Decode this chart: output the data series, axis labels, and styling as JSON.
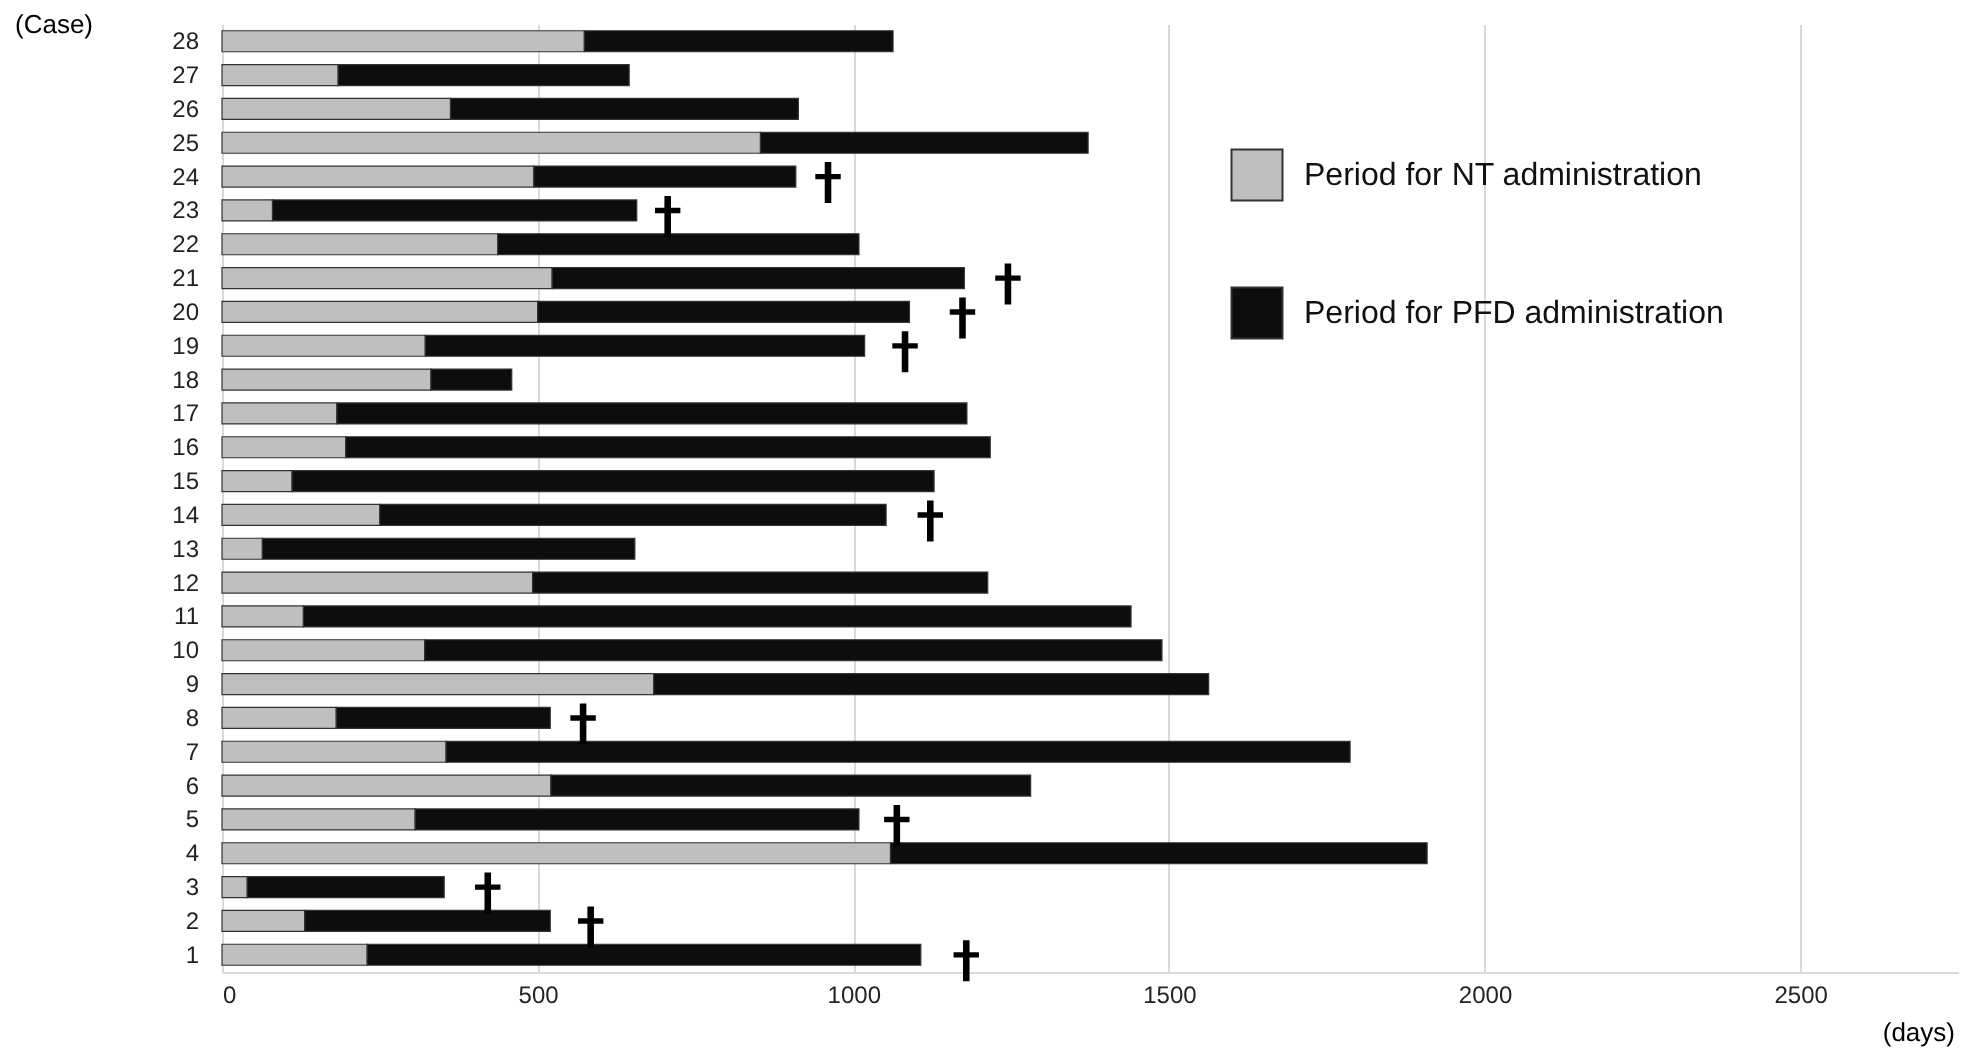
{
  "chart_data": {
    "type": "bar",
    "orientation": "horizontal",
    "stacked": true,
    "xlabel": "(days)",
    "ylabel": "(Case)",
    "categories": [
      "28",
      "27",
      "26",
      "25",
      "24",
      "23",
      "22",
      "21",
      "20",
      "19",
      "18",
      "17",
      "16",
      "15",
      "14",
      "13",
      "12",
      "11",
      "10",
      "9",
      "8",
      "7",
      "6",
      "5",
      "4",
      "3",
      "2",
      "1"
    ],
    "series": [
      {
        "name": "Period for NT administration",
        "color": "#bfbfbf",
        "values": [
          574,
          184,
          362,
          853,
          494,
          80,
          437,
          523,
          500,
          322,
          331,
          182,
          196,
          111,
          250,
          64,
          492,
          129,
          321,
          684,
          181,
          355,
          521,
          306,
          1059,
          40,
          131,
          230
        ]
      },
      {
        "name": "Period for PFD administration",
        "color": "#0d0d0d",
        "values": [
          489,
          461,
          551,
          519,
          415,
          577,
          572,
          653,
          589,
          696,
          128,
          998,
          1021,
          1017,
          802,
          590,
          721,
          1311,
          1168,
          879,
          339,
          1432,
          760,
          703,
          850,
          312,
          389,
          877
        ]
      },
      {
        "type": "scatter",
        "marker": "cross",
        "color": "#000000",
        "values": [
          null,
          null,
          null,
          null,
          960,
          706,
          null,
          1245,
          1173,
          1082,
          null,
          null,
          null,
          null,
          1122,
          null,
          null,
          null,
          null,
          null,
          572,
          null,
          null,
          1069,
          null,
          421,
          584,
          1179
        ]
      }
    ],
    "xlim": [
      0,
      2750
    ],
    "xticks": [
      0,
      500,
      1000,
      1500,
      2000,
      2500
    ],
    "grid": "x",
    "legend": "right"
  }
}
